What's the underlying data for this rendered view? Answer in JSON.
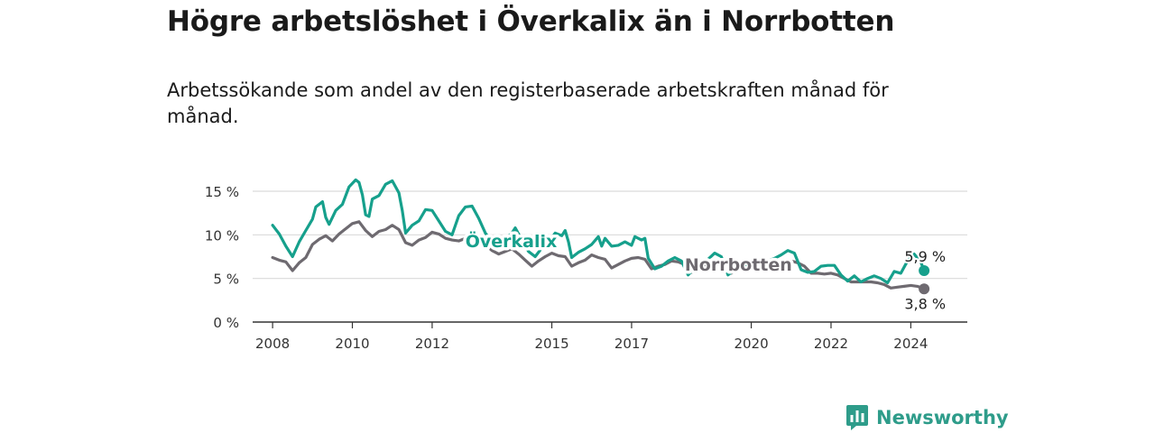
{
  "title": "Högre arbetslöshet i Överkalix än i Norrbotten",
  "subtitle": "Arbetssökande som andel av den registerbaserade arbetskraften månad för månad.",
  "brand": "Newsworthy",
  "colors": {
    "overkalix": "#16a08c",
    "norrbotten": "#6e6a70",
    "grid": "#d9d9d9",
    "axis": "#333333"
  },
  "chart_data": {
    "type": "line",
    "title": "",
    "xlabel": "",
    "ylabel": "",
    "xlim": [
      "2007-07",
      "2025-06"
    ],
    "ylim": [
      0,
      15
    ],
    "grid": true,
    "y_ticks": [
      0,
      5,
      10,
      15
    ],
    "y_tick_labels": [
      "0 %",
      "5 %",
      "10 %",
      "15 %"
    ],
    "x_ticks": [
      "2008",
      "2010",
      "2012",
      "2015",
      "2017",
      "2020",
      "2022",
      "2024"
    ],
    "inline_labels": [
      {
        "series": "Överkalix",
        "text": "Överkalix",
        "at": "2012-11",
        "y": 9.3
      },
      {
        "series": "Norrbotten",
        "text": "Norrbotten",
        "at": "2018-05",
        "y": 6.6
      }
    ],
    "end_labels": [
      {
        "series": "Överkalix",
        "text": "5,9 %"
      },
      {
        "series": "Norrbotten",
        "text": "3,8 %"
      }
    ],
    "series": [
      {
        "name": "Överkalix",
        "points": [
          [
            "2008-01",
            11.1
          ],
          [
            "2008-03",
            10.1
          ],
          [
            "2008-05",
            8.7
          ],
          [
            "2008-07",
            7.5
          ],
          [
            "2008-09",
            9.2
          ],
          [
            "2008-11",
            10.5
          ],
          [
            "2009-01",
            11.8
          ],
          [
            "2009-02",
            13.2
          ],
          [
            "2009-04",
            13.8
          ],
          [
            "2009-05",
            12.0
          ],
          [
            "2009-06",
            11.2
          ],
          [
            "2009-08",
            12.8
          ],
          [
            "2009-10",
            13.5
          ],
          [
            "2009-12",
            15.5
          ],
          [
            "2010-02",
            16.3
          ],
          [
            "2010-03",
            16.0
          ],
          [
            "2010-04",
            14.6
          ],
          [
            "2010-05",
            12.3
          ],
          [
            "2010-06",
            12.1
          ],
          [
            "2010-07",
            14.1
          ],
          [
            "2010-09",
            14.5
          ],
          [
            "2010-11",
            15.8
          ],
          [
            "2011-01",
            16.2
          ],
          [
            "2011-03",
            14.8
          ],
          [
            "2011-04",
            12.8
          ],
          [
            "2011-05",
            10.2
          ],
          [
            "2011-07",
            11.1
          ],
          [
            "2011-09",
            11.6
          ],
          [
            "2011-11",
            12.9
          ],
          [
            "2012-01",
            12.8
          ],
          [
            "2012-03",
            11.6
          ],
          [
            "2012-05",
            10.4
          ],
          [
            "2012-07",
            10.0
          ],
          [
            "2012-09",
            12.2
          ],
          [
            "2012-11",
            13.2
          ],
          [
            "2013-01",
            13.3
          ],
          [
            "2013-03",
            11.9
          ],
          [
            "2013-05",
            10.2
          ],
          [
            "2013-07",
            9.2
          ],
          [
            "2013-09",
            9.2
          ],
          [
            "2013-11",
            9.5
          ],
          [
            "2014-01",
            10.2
          ],
          [
            "2014-02",
            10.8
          ],
          [
            "2014-04",
            9.4
          ],
          [
            "2014-06",
            8.1
          ],
          [
            "2014-08",
            7.5
          ],
          [
            "2014-10",
            8.5
          ],
          [
            "2014-12",
            9.1
          ],
          [
            "2015-02",
            10.2
          ],
          [
            "2015-04",
            9.9
          ],
          [
            "2015-05",
            10.5
          ],
          [
            "2015-06",
            9.2
          ],
          [
            "2015-07",
            7.4
          ],
          [
            "2015-09",
            8.0
          ],
          [
            "2015-11",
            8.4
          ],
          [
            "2016-01",
            8.9
          ],
          [
            "2016-03",
            9.8
          ],
          [
            "2016-04",
            8.7
          ],
          [
            "2016-05",
            9.6
          ],
          [
            "2016-07",
            8.7
          ],
          [
            "2016-09",
            8.8
          ],
          [
            "2016-11",
            9.2
          ],
          [
            "2017-01",
            8.8
          ],
          [
            "2017-02",
            9.8
          ],
          [
            "2017-04",
            9.4
          ],
          [
            "2017-05",
            9.6
          ],
          [
            "2017-06",
            7.3
          ],
          [
            "2017-08",
            6.1
          ],
          [
            "2017-10",
            6.4
          ],
          [
            "2017-12",
            7.0
          ],
          [
            "2018-02",
            7.4
          ],
          [
            "2018-04",
            7.0
          ],
          [
            "2018-06",
            5.4
          ],
          [
            "2018-08",
            6.2
          ],
          [
            "2018-10",
            6.9
          ],
          [
            "2018-12",
            7.2
          ],
          [
            "2019-02",
            7.9
          ],
          [
            "2019-04",
            7.5
          ],
          [
            "2019-06",
            5.4
          ],
          [
            "2019-08",
            6.0
          ],
          [
            "2019-10",
            6.5
          ],
          [
            "2019-12",
            6.6
          ],
          [
            "2020-02",
            6.8
          ],
          [
            "2020-04",
            6.9
          ],
          [
            "2020-06",
            7.0
          ],
          [
            "2020-08",
            7.3
          ],
          [
            "2020-10",
            7.7
          ],
          [
            "2020-12",
            8.2
          ],
          [
            "2021-02",
            7.9
          ],
          [
            "2021-04",
            6.0
          ],
          [
            "2021-06",
            5.7
          ],
          [
            "2021-08",
            5.8
          ],
          [
            "2021-10",
            6.4
          ],
          [
            "2021-12",
            6.5
          ],
          [
            "2022-02",
            6.5
          ],
          [
            "2022-04",
            5.4
          ],
          [
            "2022-06",
            4.7
          ],
          [
            "2022-08",
            5.3
          ],
          [
            "2022-10",
            4.6
          ],
          [
            "2022-12",
            5.0
          ],
          [
            "2023-02",
            5.3
          ],
          [
            "2023-04",
            5.0
          ],
          [
            "2023-06",
            4.5
          ],
          [
            "2023-08",
            5.8
          ],
          [
            "2023-10",
            5.6
          ],
          [
            "2023-12",
            7.0
          ],
          [
            "2024-02",
            7.8
          ],
          [
            "2024-04",
            6.9
          ],
          [
            "2024-05",
            5.9
          ]
        ]
      },
      {
        "name": "Norrbotten",
        "points": [
          [
            "2008-01",
            7.4
          ],
          [
            "2008-03",
            7.1
          ],
          [
            "2008-05",
            6.9
          ],
          [
            "2008-07",
            5.9
          ],
          [
            "2008-09",
            6.8
          ],
          [
            "2008-11",
            7.4
          ],
          [
            "2009-01",
            8.9
          ],
          [
            "2009-03",
            9.5
          ],
          [
            "2009-05",
            9.9
          ],
          [
            "2009-07",
            9.3
          ],
          [
            "2009-09",
            10.1
          ],
          [
            "2009-11",
            10.7
          ],
          [
            "2010-01",
            11.3
          ],
          [
            "2010-03",
            11.5
          ],
          [
            "2010-05",
            10.5
          ],
          [
            "2010-07",
            9.8
          ],
          [
            "2010-09",
            10.4
          ],
          [
            "2010-11",
            10.6
          ],
          [
            "2011-01",
            11.1
          ],
          [
            "2011-03",
            10.6
          ],
          [
            "2011-05",
            9.1
          ],
          [
            "2011-07",
            8.8
          ],
          [
            "2011-09",
            9.4
          ],
          [
            "2011-11",
            9.7
          ],
          [
            "2012-01",
            10.3
          ],
          [
            "2012-03",
            10.1
          ],
          [
            "2012-05",
            9.6
          ],
          [
            "2012-07",
            9.4
          ],
          [
            "2012-09",
            9.3
          ],
          [
            "2012-11",
            9.6
          ],
          [
            "2013-01",
            9.9
          ],
          [
            "2013-03",
            9.6
          ],
          [
            "2013-05",
            8.9
          ],
          [
            "2013-07",
            8.2
          ],
          [
            "2013-09",
            7.8
          ],
          [
            "2013-11",
            8.1
          ],
          [
            "2014-01",
            8.4
          ],
          [
            "2014-03",
            7.8
          ],
          [
            "2014-05",
            7.1
          ],
          [
            "2014-07",
            6.4
          ],
          [
            "2014-09",
            7.0
          ],
          [
            "2014-11",
            7.5
          ],
          [
            "2015-01",
            7.9
          ],
          [
            "2015-03",
            7.6
          ],
          [
            "2015-05",
            7.5
          ],
          [
            "2015-07",
            6.4
          ],
          [
            "2015-09",
            6.8
          ],
          [
            "2015-11",
            7.1
          ],
          [
            "2016-01",
            7.7
          ],
          [
            "2016-03",
            7.4
          ],
          [
            "2016-05",
            7.2
          ],
          [
            "2016-07",
            6.2
          ],
          [
            "2016-09",
            6.6
          ],
          [
            "2016-11",
            7.0
          ],
          [
            "2017-01",
            7.3
          ],
          [
            "2017-03",
            7.4
          ],
          [
            "2017-05",
            7.2
          ],
          [
            "2017-07",
            6.1
          ],
          [
            "2017-09",
            6.4
          ],
          [
            "2017-11",
            6.6
          ],
          [
            "2018-01",
            7.0
          ],
          [
            "2018-03",
            6.9
          ],
          [
            "2018-05",
            6.6
          ],
          [
            "2018-07",
            5.7
          ],
          [
            "2018-09",
            6.0
          ],
          [
            "2018-11",
            6.3
          ],
          [
            "2019-01",
            6.6
          ],
          [
            "2019-03",
            6.5
          ],
          [
            "2019-05",
            6.3
          ],
          [
            "2019-07",
            5.6
          ],
          [
            "2019-09",
            6.0
          ],
          [
            "2019-11",
            6.2
          ],
          [
            "2020-01",
            6.4
          ],
          [
            "2020-03",
            6.6
          ],
          [
            "2020-05",
            6.8
          ],
          [
            "2020-07",
            6.7
          ],
          [
            "2020-09",
            6.8
          ],
          [
            "2020-11",
            6.9
          ],
          [
            "2021-01",
            7.0
          ],
          [
            "2021-03",
            6.8
          ],
          [
            "2021-05",
            6.4
          ],
          [
            "2021-07",
            5.6
          ],
          [
            "2021-09",
            5.6
          ],
          [
            "2021-11",
            5.5
          ],
          [
            "2022-01",
            5.6
          ],
          [
            "2022-03",
            5.4
          ],
          [
            "2022-05",
            5.0
          ],
          [
            "2022-07",
            4.6
          ],
          [
            "2022-09",
            4.6
          ],
          [
            "2022-11",
            4.6
          ],
          [
            "2023-01",
            4.6
          ],
          [
            "2023-03",
            4.5
          ],
          [
            "2023-05",
            4.3
          ],
          [
            "2023-07",
            3.9
          ],
          [
            "2023-09",
            4.0
          ],
          [
            "2023-11",
            4.1
          ],
          [
            "2024-01",
            4.2
          ],
          [
            "2024-03",
            4.1
          ],
          [
            "2024-05",
            3.8
          ]
        ]
      }
    ]
  }
}
